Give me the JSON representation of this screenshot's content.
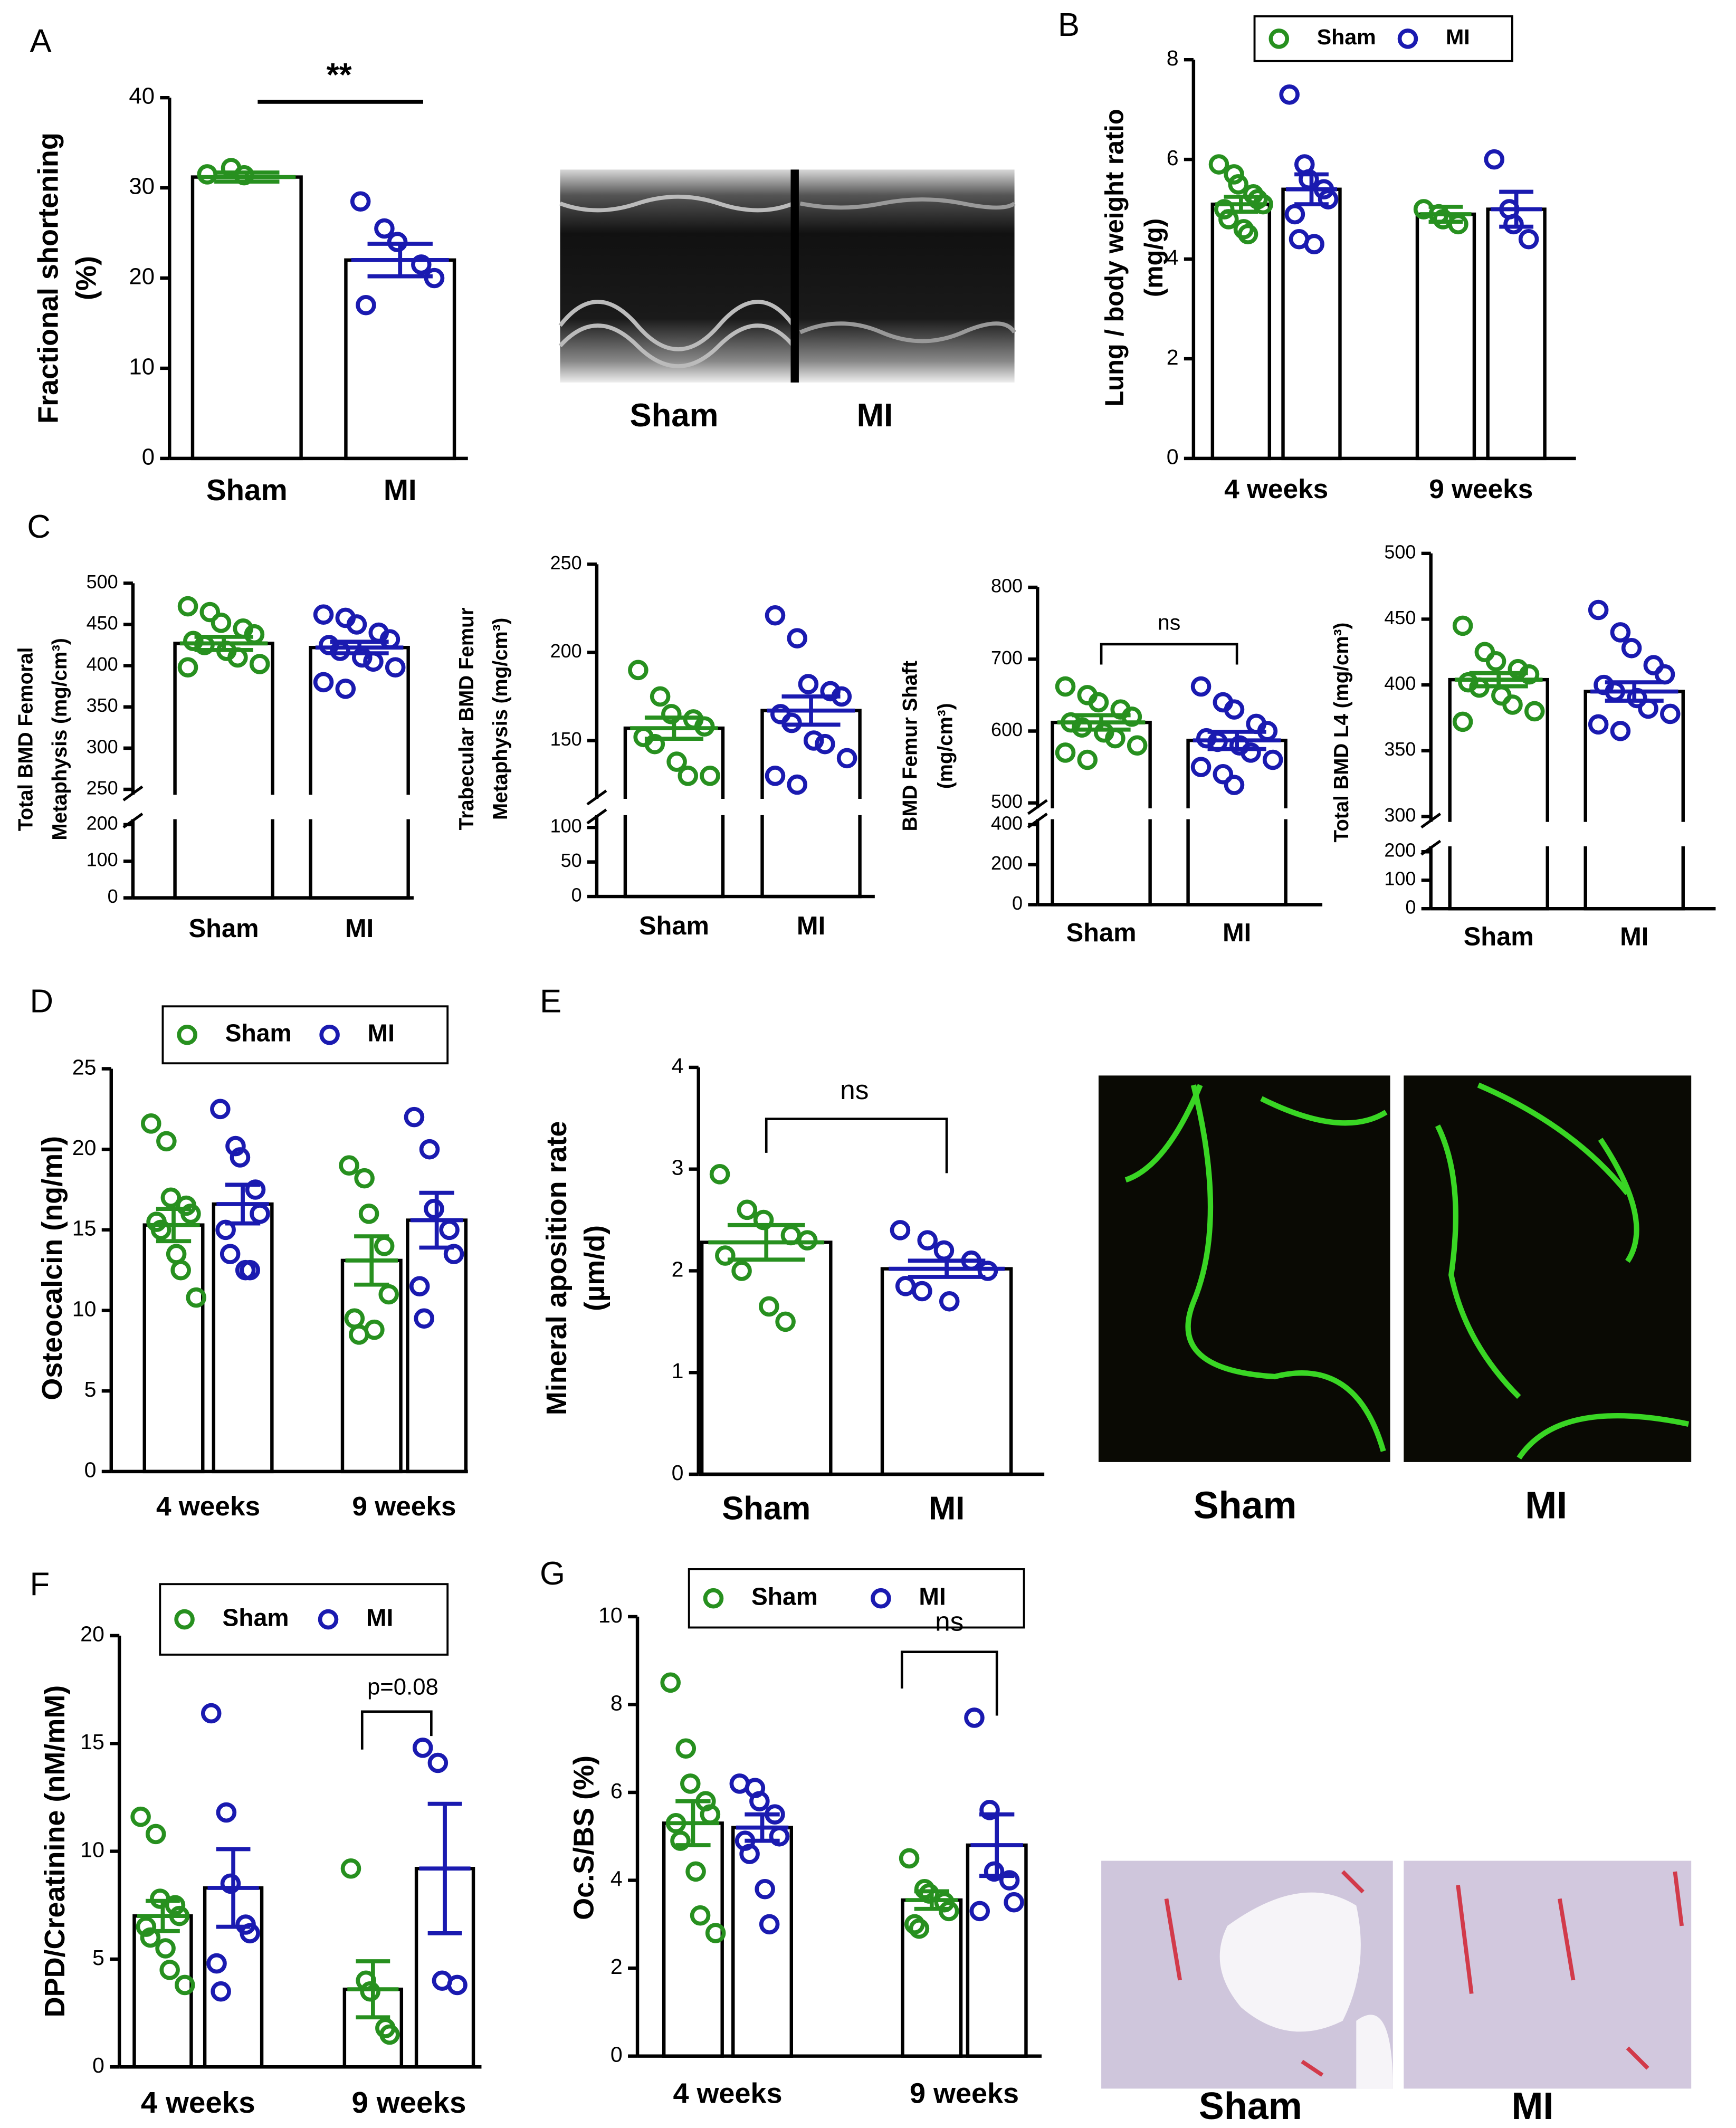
{
  "panels": [
    "A",
    "B",
    "C",
    "D",
    "E",
    "F",
    "G"
  ],
  "images": [
    {
      "labels": [
        "Sham",
        "MI"
      ]
    },
    {
      "labels": [
        "Sham",
        "MI"
      ]
    },
    {
      "labels": [
        "Sham",
        "MI"
      ]
    }
  ],
  "chart_data": [
    {
      "type": "bar",
      "ylabel": [
        "Fractional shortening",
        "(%)"
      ],
      "categories": [
        "Sham",
        "MI"
      ],
      "series": [
        {
          "colors": [
            "#27901f",
            "#1a1ab0"
          ],
          "values": [
            31.2,
            22
          ],
          "errors": [
            0.5,
            1.8
          ],
          "points": [
            [
              31.5,
              32.2,
              31.4
            ],
            [
              28.5,
              25.5,
              24,
              21.5,
              20,
              17
            ]
          ]
        }
      ],
      "ylim": [
        0,
        40
      ],
      "yticks": [
        0,
        10,
        20,
        30,
        40
      ],
      "annotations": [
        {
          "text": "**"
        }
      ]
    },
    {
      "type": "bar",
      "ylabel": [
        "Lung / body weight ratio",
        "(mg/g)"
      ],
      "categories": [
        "4 weeks",
        "9 weeks"
      ],
      "series": [
        {
          "name": "Sham",
          "color": "#27901f",
          "values": [
            5.1,
            4.9
          ],
          "errors": [
            0.15,
            0.15
          ],
          "points": [
            [
              5.9,
              5.7,
              5.5,
              5.3,
              5.2,
              5.0,
              4.8,
              4.6,
              4.5,
              5.1
            ],
            [
              5.0,
              4.9,
              4.8,
              4.7
            ]
          ]
        },
        {
          "name": "MI",
          "color": "#1a1ab0",
          "values": [
            5.4,
            5.0
          ],
          "errors": [
            0.3,
            0.35
          ],
          "points": [
            [
              7.3,
              5.9,
              5.6,
              5.4,
              5.2,
              4.9,
              4.4,
              4.3
            ],
            [
              6.0,
              5.0,
              4.7,
              4.4
            ]
          ]
        }
      ],
      "ylim": [
        0,
        8
      ],
      "yticks": [
        0,
        2,
        4,
        6,
        8
      ],
      "legend": "top"
    },
    {
      "type": "bar",
      "ylabel": [
        "Total BMD Femoral",
        "Metaphysis (mg/cm³)"
      ],
      "categories": [
        "Sham",
        "MI"
      ],
      "series": [
        {
          "colors": [
            "#27901f",
            "#1a1ab0"
          ],
          "values": [
            427,
            422
          ],
          "errors": [
            8,
            7
          ],
          "points": [
            [
              472,
              465,
              452,
              445,
              438,
              430,
              425,
              418,
              410,
              402,
              398
            ],
            [
              462,
              458,
              450,
              440,
              432,
              425,
              418,
              410,
              405,
              398,
              380,
              372
            ]
          ]
        }
      ],
      "ylim": [
        0,
        500
      ],
      "ybreak": [
        200,
        250
      ],
      "yticks": [
        0,
        100,
        200,
        250,
        300,
        350,
        400,
        450,
        500
      ]
    },
    {
      "type": "bar",
      "ylabel": [
        "Trabecular BMD Femur",
        "Metaphysis (mg/cm³)"
      ],
      "categories": [
        "Sham",
        "MI"
      ],
      "series": [
        {
          "colors": [
            "#27901f",
            "#1a1ab0"
          ],
          "values": [
            157,
            167
          ],
          "errors": [
            6,
            8
          ],
          "points": [
            [
              190,
              175,
              165,
              162,
              158,
              152,
              148,
              138,
              130,
              130
            ],
            [
              221,
              208,
              182,
              178,
              175,
              165,
              160,
              150,
              148,
              140,
              130,
              125
            ]
          ]
        }
      ],
      "ylim": [
        0,
        250
      ],
      "ybreak": [
        110,
        120
      ],
      "yticks": [
        0,
        50,
        100,
        150,
        200,
        250
      ]
    },
    {
      "type": "bar",
      "ylabel": [
        "BMD Femur Shaft",
        "(mg/cm³)"
      ],
      "categories": [
        "Sham",
        "MI"
      ],
      "series": [
        {
          "colors": [
            "#27901f",
            "#1a1ab0"
          ],
          "values": [
            612,
            587
          ],
          "errors": [
            10,
            12
          ],
          "points": [
            [
              662,
              650,
              640,
              630,
              620,
              612,
              605,
              598,
              590,
              580,
              570,
              560
            ],
            [
              662,
              640,
              630,
              610,
              600,
              590,
              585,
              580,
              570,
              560,
              550,
              540,
              525
            ]
          ]
        }
      ],
      "ylim": [
        0,
        800
      ],
      "ybreak": [
        400,
        500
      ],
      "yticks": [
        0,
        200,
        400,
        500,
        600,
        700,
        800
      ],
      "annotations": [
        {
          "text": "ns"
        }
      ]
    },
    {
      "type": "bar",
      "ylabel": [
        "Total BMD L4 (mg/cm³)"
      ],
      "categories": [
        "Sham",
        "MI"
      ],
      "series": [
        {
          "colors": [
            "#27901f",
            "#1a1ab0"
          ],
          "values": [
            404,
            395
          ],
          "errors": [
            5,
            7
          ],
          "points": [
            [
              445,
              425,
              418,
              412,
              408,
              402,
              398,
              392,
              385,
              380,
              372
            ],
            [
              457,
              440,
              428,
              415,
              408,
              400,
              395,
              390,
              382,
              378,
              370,
              365
            ]
          ]
        }
      ],
      "ylim": [
        0,
        500
      ],
      "ybreak": [
        200,
        300
      ],
      "yticks": [
        0,
        100,
        200,
        300,
        350,
        400,
        450,
        500
      ]
    },
    {
      "type": "bar",
      "ylabel": [
        "Osteocalcin (ng/ml)"
      ],
      "categories": [
        "4 weeks",
        "9 weeks"
      ],
      "series": [
        {
          "name": "Sham",
          "color": "#27901f",
          "values": [
            15.3,
            13.1
          ],
          "errors": [
            1.0,
            1.5
          ],
          "points": [
            [
              21.6,
              20.5,
              17,
              16.5,
              16,
              15.5,
              15,
              13.5,
              12.5,
              10.8
            ],
            [
              19,
              18.2,
              16,
              14,
              11,
              9.5,
              8.5,
              8.8
            ]
          ]
        },
        {
          "name": "MI",
          "color": "#1a1ab0",
          "values": [
            16.6,
            15.6
          ],
          "errors": [
            1.2,
            1.7
          ],
          "points": [
            [
              22.5,
              20.2,
              19.5,
              17.5,
              16,
              15,
              13.5,
              12.5,
              12.5
            ],
            [
              22,
              20,
              16.3,
              15,
              13.5,
              11.5,
              9.5
            ]
          ]
        }
      ],
      "ylim": [
        0,
        25
      ],
      "yticks": [
        0,
        5,
        10,
        15,
        20,
        25
      ],
      "legend": "top"
    },
    {
      "type": "bar",
      "ylabel": [
        "Mineral aposition rate",
        "(µm/d)"
      ],
      "categories": [
        "Sham",
        "MI"
      ],
      "series": [
        {
          "colors": [
            "#27901f",
            "#1a1ab0"
          ],
          "values": [
            2.28,
            2.02
          ],
          "errors": [
            0.17,
            0.08
          ],
          "points": [
            [
              2.95,
              2.6,
              2.5,
              2.35,
              2.3,
              2.15,
              2.0,
              1.65,
              1.5
            ],
            [
              2.4,
              2.3,
              2.2,
              2.1,
              2.0,
              1.85,
              1.8,
              1.7
            ]
          ]
        }
      ],
      "ylim": [
        0,
        4
      ],
      "yticks": [
        0,
        1,
        2,
        3,
        4
      ],
      "annotations": [
        {
          "text": "ns"
        }
      ]
    },
    {
      "type": "bar",
      "ylabel": [
        "DPD/Creatinine (nM/mM)"
      ],
      "categories": [
        "4 weeks",
        "9 weeks"
      ],
      "series": [
        {
          "name": "Sham",
          "color": "#27901f",
          "values": [
            7.0,
            3.6
          ],
          "errors": [
            0.7,
            1.3
          ],
          "points": [
            [
              11.6,
              10.8,
              7.8,
              7.5,
              7.0,
              6.5,
              6.0,
              5.5,
              4.5,
              3.8
            ],
            [
              9.2,
              4.0,
              3.5,
              1.8,
              1.5
            ]
          ]
        },
        {
          "name": "MI",
          "color": "#1a1ab0",
          "values": [
            8.3,
            9.2
          ],
          "errors": [
            1.8,
            3.0
          ],
          "points": [
            [
              16.4,
              11.8,
              8.5,
              6.6,
              6.2,
              4.8,
              3.5
            ],
            [
              14.8,
              14.1,
              4.0,
              3.8
            ]
          ]
        }
      ],
      "ylim": [
        0,
        20
      ],
      "yticks": [
        0,
        5,
        10,
        15,
        20
      ],
      "legend": "top",
      "annotations": [
        {
          "text": "p=0.08"
        }
      ]
    },
    {
      "type": "bar",
      "ylabel": [
        "Oc.S/BS (%)"
      ],
      "categories": [
        "4 weeks",
        "9 weeks"
      ],
      "series": [
        {
          "name": "Sham",
          "color": "#27901f",
          "values": [
            5.3,
            3.55
          ],
          "errors": [
            0.5,
            0.2
          ],
          "points": [
            [
              8.5,
              7.0,
              6.2,
              5.8,
              5.5,
              5.3,
              4.9,
              4.2,
              3.2,
              2.8
            ],
            [
              4.5,
              3.8,
              3.7,
              3.5,
              3.3,
              3.0,
              2.9
            ]
          ]
        },
        {
          "name": "MI",
          "color": "#1a1ab0",
          "values": [
            5.2,
            4.8
          ],
          "errors": [
            0.3,
            0.7
          ],
          "points": [
            [
              6.2,
              6.1,
              5.8,
              5.5,
              5.0,
              4.9,
              4.6,
              3.8,
              3.0
            ],
            [
              7.7,
              5.6,
              4.2,
              4.0,
              3.5,
              3.3
            ]
          ]
        }
      ],
      "ylim": [
        0,
        10
      ],
      "yticks": [
        0,
        2,
        4,
        6,
        8,
        10
      ],
      "legend": "top",
      "annotations": [
        {
          "text": "ns"
        }
      ]
    }
  ]
}
